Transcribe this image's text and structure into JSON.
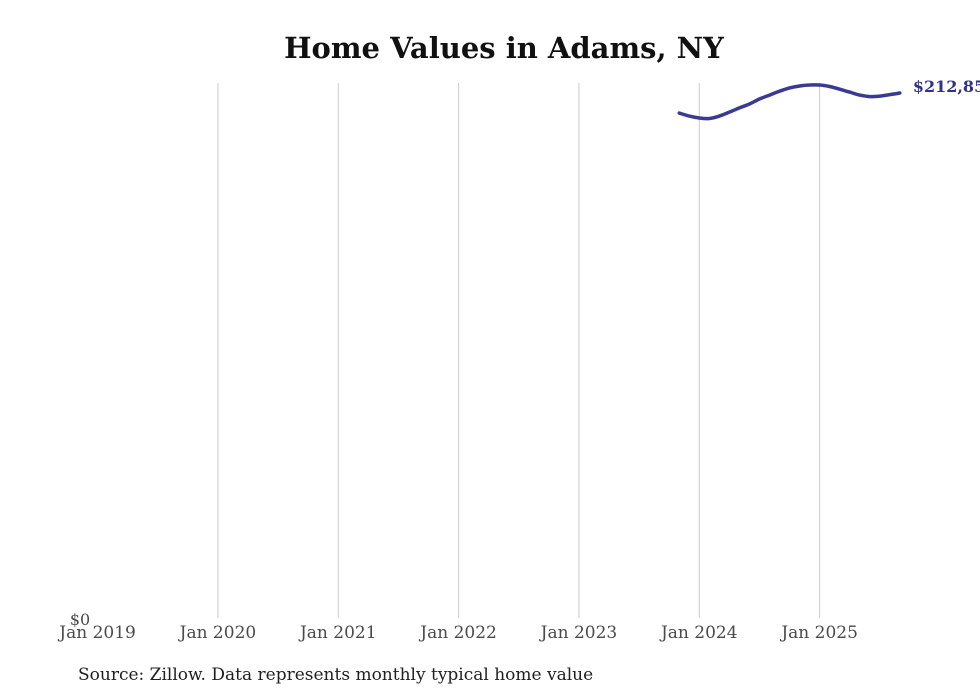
{
  "chart": {
    "title": "Home Values in Adams, NY",
    "source_note": "Source: Zillow. Data represents monthly typical home value",
    "y_axis_zero_label": "$0",
    "end_value_label": "$212,85",
    "colors": {
      "line": "#3b3a92",
      "end_label": "#31308a",
      "grid": "#cccccc",
      "axis_text": "#4a4a4a",
      "title_text": "#111111",
      "source_text": "#1f1f1f"
    }
  },
  "chart_data": {
    "type": "line",
    "title": "Home Values in Adams, NY",
    "xlabel": "",
    "ylabel": "",
    "legend": false,
    "grid": "vertical-only",
    "y_axis_labels": [
      "$0"
    ],
    "ylim": [
      0,
      220000
    ],
    "x_ticks": [
      {
        "label": "Jan 2019",
        "month_index": 0,
        "gridline": false
      },
      {
        "label": "Jan 2020",
        "month_index": 12,
        "gridline": true
      },
      {
        "label": "Jan 2021",
        "month_index": 24,
        "gridline": true
      },
      {
        "label": "Jan 2022",
        "month_index": 36,
        "gridline": true
      },
      {
        "label": "Jan 2023",
        "month_index": 48,
        "gridline": true
      },
      {
        "label": "Jan 2024",
        "month_index": 60,
        "gridline": true
      },
      {
        "label": "Jan 2025",
        "month_index": 72,
        "gridline": true
      }
    ],
    "series": [
      {
        "name": "Monthly typical home value",
        "start_month": "Nov 2023",
        "start_month_index": 58,
        "end_month": "Sep 2025",
        "end_annotation": "$212,85",
        "months": [
          "Nov 2023",
          "Dec 2023",
          "Jan 2024",
          "Feb 2024",
          "Mar 2024",
          "Apr 2024",
          "May 2024",
          "Jun 2024",
          "Jul 2024",
          "Aug 2024",
          "Sep 2024",
          "Oct 2024",
          "Nov 2024",
          "Dec 2024",
          "Jan 2025",
          "Feb 2025",
          "Mar 2025",
          "Apr 2025",
          "May 2025",
          "Jun 2025",
          "Jul 2025",
          "Aug 2025",
          "Sep 2025"
        ],
        "values": [
          204700,
          203500,
          202700,
          202500,
          203500,
          205100,
          206800,
          208400,
          210400,
          212000,
          213600,
          214900,
          215700,
          216100,
          216100,
          215500,
          214400,
          213200,
          212000,
          211400,
          211600,
          212200,
          212850
        ]
      }
    ]
  }
}
